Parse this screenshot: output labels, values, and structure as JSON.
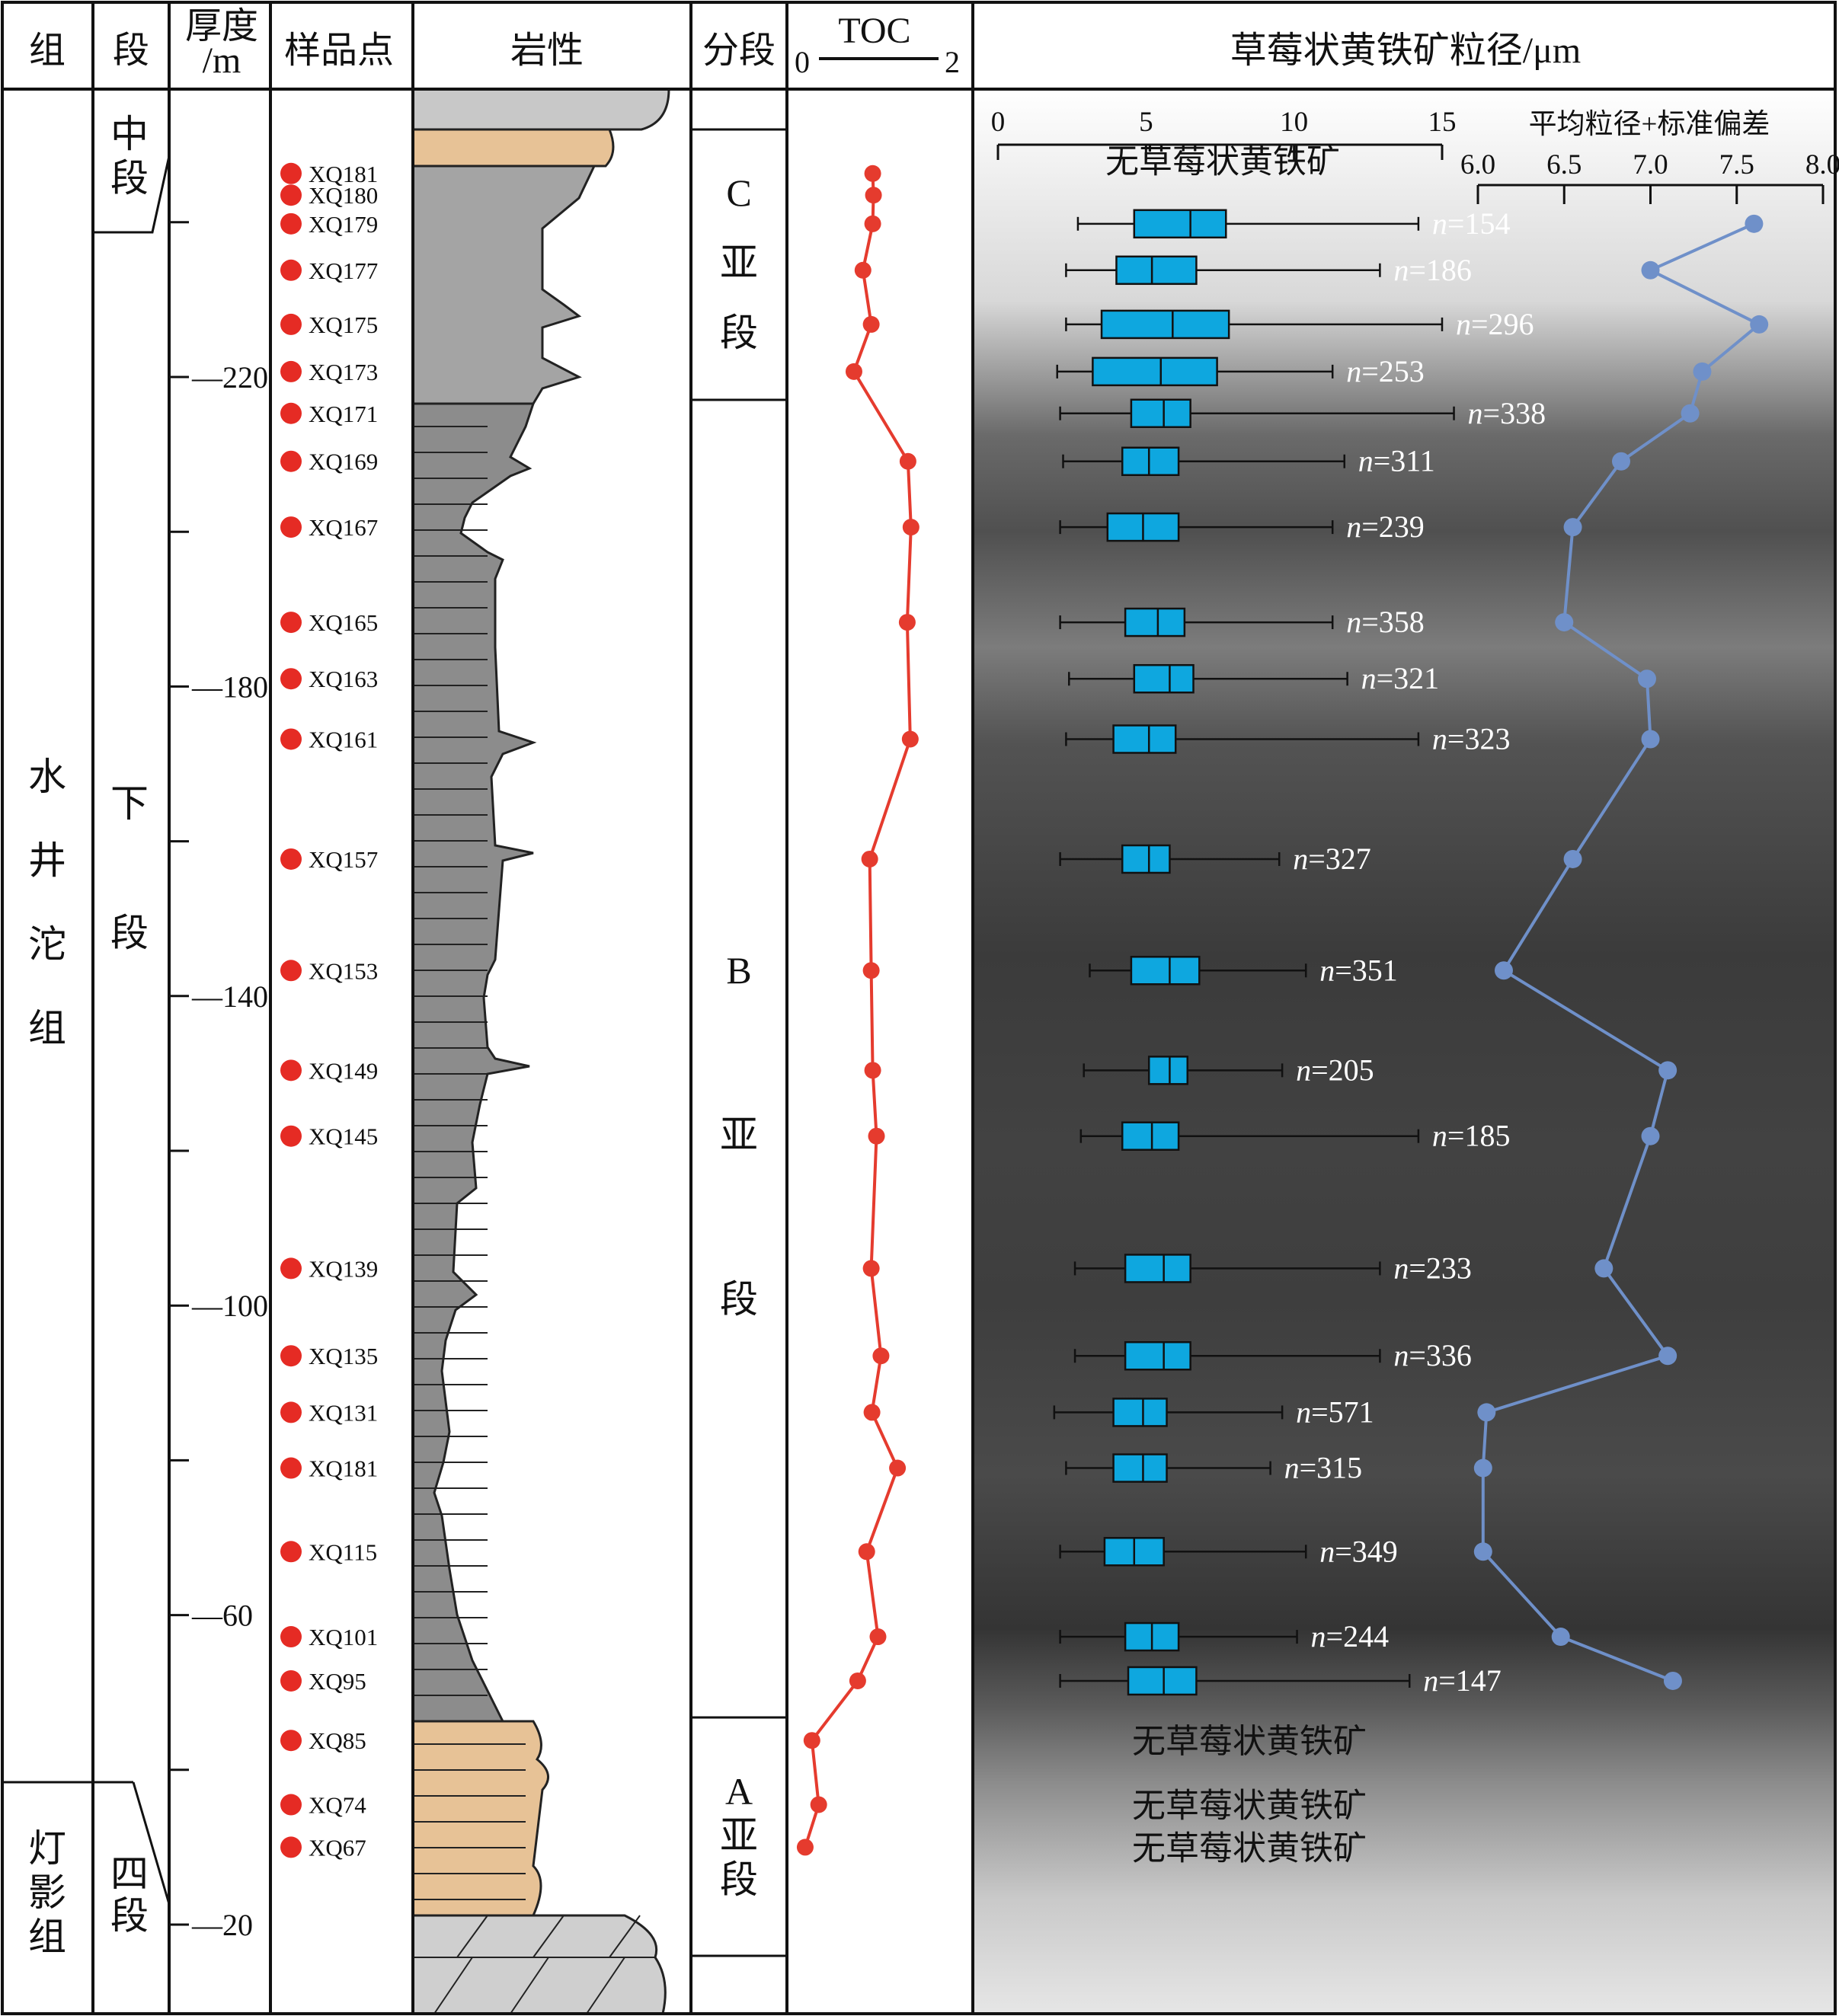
{
  "headers": {
    "formation": "组",
    "member": "段",
    "thickness": "厚度\n/m",
    "samples": "样品点",
    "lithology": "岩性",
    "subsection": "分段",
    "toc": "TOC",
    "toc_min": "0",
    "toc_max": "2",
    "framboid": "草莓状黄铁矿粒径/μm"
  },
  "formations": [
    {
      "label": "水\n井\n沱\n组"
    },
    {
      "label": "灯\n影\n组"
    }
  ],
  "members": [
    {
      "label": "中\n段"
    },
    {
      "label": "下\n\n段"
    },
    {
      "label": "四\n段"
    }
  ],
  "subsections": [
    {
      "label": "C\n亚\n段"
    },
    {
      "label": "B\n\n\n\n亚\n\n\n\n段"
    },
    {
      "label": "A\n亚\n段"
    }
  ],
  "chart_data": {
    "type": "box",
    "title": "草莓状黄铁矿粒径/μm",
    "depth_ticks": [
      20,
      60,
      100,
      140,
      180,
      220
    ],
    "size_axis": {
      "ticks": [
        0,
        5,
        10,
        15
      ],
      "range": [
        0,
        15
      ]
    },
    "mean_axis": {
      "label": "平均粒径+标准偏差",
      "ticks": [
        6.0,
        6.5,
        7.0,
        7.5,
        8.0
      ],
      "range": [
        6.0,
        8.0
      ]
    },
    "toc_range": [
      0,
      2
    ],
    "samples": [
      {
        "id": "XQ181",
        "depth": 246.3,
        "toc": 0.94
      },
      {
        "id": "XQ180",
        "depth": 243.5,
        "toc": 0.95
      },
      {
        "id": "XQ179",
        "depth": 239.8,
        "toc": 0.94,
        "n": 154,
        "box": [
          2.7,
          4.6,
          6.5,
          7.7,
          14.2
        ],
        "mean": 7.6
      },
      {
        "id": "XQ177",
        "depth": 233.8,
        "toc": 0.81,
        "n": 186,
        "box": [
          2.3,
          4.0,
          5.2,
          6.7,
          12.9
        ],
        "mean": 7.0
      },
      {
        "id": "XQ175",
        "depth": 226.8,
        "toc": 0.92,
        "n": 296,
        "box": [
          2.3,
          3.5,
          5.9,
          7.8,
          15.0
        ],
        "mean": 7.63
      },
      {
        "id": "XQ173",
        "depth": 220.7,
        "toc": 0.69,
        "n": 253,
        "box": [
          2.0,
          3.2,
          5.5,
          7.4,
          11.3
        ],
        "mean": 7.3
      },
      {
        "id": "XQ171",
        "depth": 215.3,
        "toc": null,
        "n": 338,
        "box": [
          2.1,
          4.5,
          5.6,
          6.5,
          15.4
        ],
        "mean": 7.23
      },
      {
        "id": "XQ169",
        "depth": 209.1,
        "toc": 1.41,
        "n": 311,
        "box": [
          2.2,
          4.2,
          5.1,
          6.1,
          11.7
        ],
        "mean": 6.83
      },
      {
        "id": "XQ167",
        "depth": 200.6,
        "toc": 1.45,
        "n": 239,
        "box": [
          2.1,
          3.7,
          4.9,
          6.1,
          11.3
        ],
        "mean": 6.55
      },
      {
        "id": "XQ165",
        "depth": 188.3,
        "toc": 1.4,
        "n": 358,
        "box": [
          2.1,
          4.3,
          5.4,
          6.3,
          11.3
        ],
        "mean": 6.5
      },
      {
        "id": "XQ163",
        "depth": 181.0,
        "toc": null,
        "n": 321,
        "box": [
          2.4,
          4.6,
          5.8,
          6.6,
          11.8
        ],
        "mean": 6.98
      },
      {
        "id": "XQ161",
        "depth": 173.2,
        "toc": 1.44,
        "n": 323,
        "box": [
          2.3,
          3.9,
          5.1,
          6.0,
          14.2
        ],
        "mean": 7.0
      },
      {
        "id": "XQ157",
        "depth": 157.7,
        "toc": 0.9,
        "n": 327,
        "box": [
          2.1,
          4.2,
          5.1,
          5.8,
          9.5
        ],
        "mean": 6.55
      },
      {
        "id": "XQ153",
        "depth": 143.3,
        "toc": 0.92,
        "n": 351,
        "box": [
          3.1,
          4.5,
          5.8,
          6.8,
          10.4
        ],
        "mean": 6.15
      },
      {
        "id": "XQ149",
        "depth": 130.4,
        "toc": 0.94,
        "n": 205,
        "box": [
          2.9,
          5.1,
          5.8,
          6.4,
          9.6
        ],
        "mean": 7.1
      },
      {
        "id": "XQ145",
        "depth": 121.9,
        "toc": 0.99,
        "n": 185,
        "box": [
          2.8,
          4.2,
          5.2,
          6.1,
          14.2
        ],
        "mean": 7.0
      },
      {
        "id": "XQ139",
        "depth": 104.8,
        "toc": 0.92,
        "n": 233,
        "box": [
          2.6,
          4.3,
          5.6,
          6.5,
          12.9
        ],
        "mean": 6.73
      },
      {
        "id": "XQ135",
        "depth": 93.5,
        "toc": 1.05,
        "n": 336,
        "box": [
          2.6,
          4.3,
          5.6,
          6.5,
          12.9
        ],
        "mean": 7.1
      },
      {
        "id": "XQ131",
        "depth": 86.2,
        "toc": 0.93,
        "n": 571,
        "box": [
          1.9,
          3.9,
          4.9,
          5.7,
          9.6
        ],
        "mean": 6.05
      },
      {
        "id": "XQ181",
        "depth": 79.0,
        "toc": 1.27,
        "n": 315,
        "box": [
          2.3,
          3.9,
          4.9,
          5.7,
          9.2
        ],
        "mean": 6.03
      },
      {
        "id": "XQ115",
        "depth": 68.2,
        "toc": 0.86,
        "n": 349,
        "box": [
          2.1,
          3.6,
          4.6,
          5.6,
          10.4
        ],
        "mean": 6.03
      },
      {
        "id": "XQ101",
        "depth": 57.2,
        "toc": 1.01,
        "n": 244,
        "box": [
          2.1,
          4.3,
          5.2,
          6.1,
          10.1
        ],
        "mean": 6.48
      },
      {
        "id": "XQ95",
        "depth": 51.5,
        "toc": 0.74,
        "n": 147,
        "box": [
          2.1,
          4.4,
          5.6,
          6.7,
          13.9
        ],
        "mean": 7.13
      },
      {
        "id": "XQ85",
        "depth": 43.8,
        "toc": 0.13
      },
      {
        "id": "XQ74",
        "depth": 35.5,
        "toc": 0.22
      },
      {
        "id": "XQ67",
        "depth": 30.0,
        "toc": 0.04
      }
    ],
    "no_framboid": [
      {
        "label": "无草莓状黄铁矿",
        "depth": 248.0
      },
      {
        "label": "无草莓状黄铁矿",
        "depth": 43.8
      },
      {
        "label": "无草莓状黄铁矿",
        "depth": 35.5
      },
      {
        "label": "无草莓状黄铁矿",
        "depth": 30.0
      }
    ]
  },
  "colors": {
    "toc_line": "#e53b2e",
    "sample_dot": "#e52b24",
    "box_fill": "#0ea7df",
    "mean_line": "#6f90c9",
    "lith_gray": "#a4a4a4",
    "lith_dark": "#8c8c8c",
    "lith_tan": "#e7c296"
  }
}
